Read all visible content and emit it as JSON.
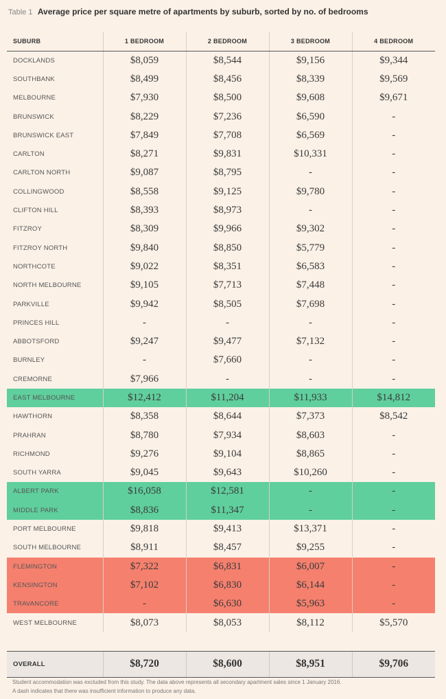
{
  "caption": {
    "label": "Table 1",
    "title": "Average price per square metre of apartments by suburb, sorted by no. of bedrooms"
  },
  "columns": [
    "SUBURB",
    "1 BEDROOM",
    "2 BEDROOM",
    "3 BEDROOM",
    "4 BEDROOM"
  ],
  "highlight_colors": {
    "green": "#5fcf9d",
    "red": "#f5806e"
  },
  "rows": [
    {
      "suburb": "DOCKLANDS",
      "values": [
        "$8,059",
        "$8,544",
        "$9,156",
        "$9,344"
      ],
      "highlight": ""
    },
    {
      "suburb": "SOUTHBANK",
      "values": [
        "$8,499",
        "$8,456",
        "$8,339",
        "$9,569"
      ],
      "highlight": ""
    },
    {
      "suburb": "MELBOURNE",
      "values": [
        "$7,930",
        "$8,500",
        "$9,608",
        "$9,671"
      ],
      "highlight": ""
    },
    {
      "suburb": "BRUNSWICK",
      "values": [
        "$8,229",
        "$7,236",
        "$6,590",
        "-"
      ],
      "highlight": ""
    },
    {
      "suburb": "BRUNSWICK EAST",
      "values": [
        "$7,849",
        "$7,708",
        "$6,569",
        "-"
      ],
      "highlight": ""
    },
    {
      "suburb": "CARLTON",
      "values": [
        "$8,271",
        "$9,831",
        "$10,331",
        "-"
      ],
      "highlight": ""
    },
    {
      "suburb": "CARLTON NORTH",
      "values": [
        "$9,087",
        "$8,795",
        "-",
        "-"
      ],
      "highlight": ""
    },
    {
      "suburb": "COLLINGWOOD",
      "values": [
        "$8,558",
        "$9,125",
        "$9,780",
        "-"
      ],
      "highlight": ""
    },
    {
      "suburb": "CLIFTON HILL",
      "values": [
        "$8,393",
        "$8,973",
        "-",
        "-"
      ],
      "highlight": ""
    },
    {
      "suburb": "FITZROY",
      "values": [
        "$8,309",
        "$9,966",
        "$9,302",
        "-"
      ],
      "highlight": ""
    },
    {
      "suburb": "FITZROY NORTH",
      "values": [
        "$9,840",
        "$8,850",
        "$5,779",
        "-"
      ],
      "highlight": ""
    },
    {
      "suburb": "NORTHCOTE",
      "values": [
        "$9,022",
        "$8,351",
        "$6,583",
        "-"
      ],
      "highlight": ""
    },
    {
      "suburb": "NORTH MELBOURNE",
      "values": [
        "$9,105",
        "$7,713",
        "$7,448",
        "-"
      ],
      "highlight": ""
    },
    {
      "suburb": "PARKVILLE",
      "values": [
        "$9,942",
        "$8,505",
        "$7,698",
        "-"
      ],
      "highlight": ""
    },
    {
      "suburb": "PRINCES HILL",
      "values": [
        "-",
        "-",
        "-",
        "-"
      ],
      "highlight": ""
    },
    {
      "suburb": "ABBOTSFORD",
      "values": [
        "$9,247",
        "$9,477",
        "$7,132",
        "-"
      ],
      "highlight": ""
    },
    {
      "suburb": "BURNLEY",
      "values": [
        "-",
        "$7,660",
        "-",
        "-"
      ],
      "highlight": ""
    },
    {
      "suburb": "CREMORNE",
      "values": [
        "$7,966",
        "-",
        "-",
        "-"
      ],
      "highlight": ""
    },
    {
      "suburb": "EAST MELBOURNE",
      "values": [
        "$12,412",
        "$11,204",
        "$11,933",
        "$14,812"
      ],
      "highlight": "green"
    },
    {
      "suburb": "HAWTHORN",
      "values": [
        "$8,358",
        "$8,644",
        "$7,373",
        "$8,542"
      ],
      "highlight": ""
    },
    {
      "suburb": "PRAHRAN",
      "values": [
        "$8,780",
        "$7,934",
        "$8,603",
        "-"
      ],
      "highlight": ""
    },
    {
      "suburb": "RICHMOND",
      "values": [
        "$9,276",
        "$9,104",
        "$8,865",
        "-"
      ],
      "highlight": ""
    },
    {
      "suburb": "SOUTH YARRA",
      "values": [
        "$9,045",
        "$9,643",
        "$10,260",
        "-"
      ],
      "highlight": ""
    },
    {
      "suburb": "ALBERT PARK",
      "values": [
        "$16,058",
        "$12,581",
        "-",
        "-"
      ],
      "highlight": "green"
    },
    {
      "suburb": "MIDDLE PARK",
      "values": [
        "$8,836",
        "$11,347",
        "-",
        "-"
      ],
      "highlight": "green"
    },
    {
      "suburb": "PORT MELBOURNE",
      "values": [
        "$9,818",
        "$9,413",
        "$13,371",
        "-"
      ],
      "highlight": ""
    },
    {
      "suburb": "SOUTH MELBOURNE",
      "values": [
        "$8,911",
        "$8,457",
        "$9,255",
        "-"
      ],
      "highlight": ""
    },
    {
      "suburb": "FLEMINGTON",
      "values": [
        "$7,322",
        "$6,831",
        "$6,007",
        "-"
      ],
      "highlight": "red"
    },
    {
      "suburb": "KENSINGTON",
      "values": [
        "$7,102",
        "$6,830",
        "$6,144",
        "-"
      ],
      "highlight": "red"
    },
    {
      "suburb": "TRAVANCORE",
      "values": [
        "-",
        "$6,630",
        "$5,963",
        "-"
      ],
      "highlight": "red"
    },
    {
      "suburb": "WEST MELBOURNE",
      "values": [
        "$8,073",
        "$8,053",
        "$8,112",
        "$5,570"
      ],
      "highlight": ""
    }
  ],
  "overall": {
    "label": "OVERALL",
    "values": [
      "$8,720",
      "$8,600",
      "$8,951",
      "$9,706"
    ]
  },
  "notes": [
    "Student accommodation was excluded from this study. The data above represents all secondary apartment sales since 1 January 2016.",
    "A dash indicates that there was insufficient information to produce any data."
  ]
}
